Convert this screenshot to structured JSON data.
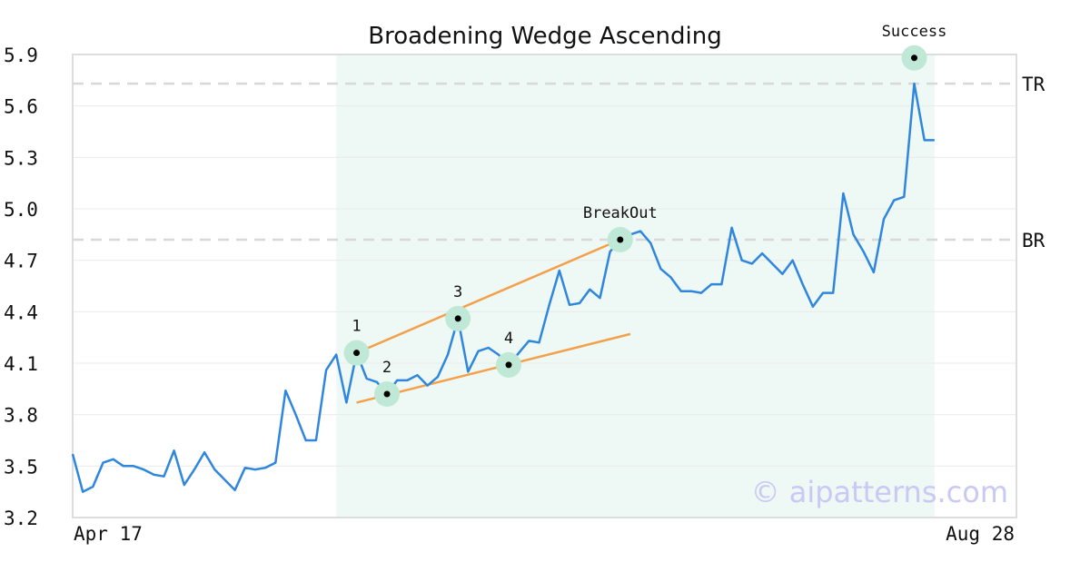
{
  "chart_data": {
    "type": "line",
    "title": "Broadening Wedge Ascending",
    "xlabel": "",
    "ylabel": "",
    "ylim": [
      3.2,
      5.9
    ],
    "yticks": [
      "5.9",
      "5.6",
      "5.3",
      "5.0",
      "4.7",
      "4.4",
      "4.1",
      "3.8",
      "3.5",
      "3.2"
    ],
    "ytick_values": [
      5.9,
      5.6,
      5.3,
      5.0,
      4.7,
      4.4,
      4.1,
      3.8,
      3.5,
      3.2
    ],
    "xtick_labels": [
      "Apr 17",
      "Aug 28"
    ],
    "x_range": [
      0,
      86
    ],
    "grid": "horizontal",
    "colors": {
      "line": "#2e86de",
      "trendline": "#f4a04a",
      "marker_halo": "#bfe9d6",
      "marker_dot": "#000000",
      "highlight": "#eef8f4",
      "level_line": "#d8d8d8",
      "watermark": "#c9c9f5"
    },
    "series": [
      {
        "values": [
          3.57,
          3.35,
          3.38,
          3.52,
          3.54,
          3.5,
          3.5,
          3.48,
          3.45,
          3.44,
          3.59,
          3.39,
          3.48,
          3.58,
          3.48,
          3.42,
          3.36,
          3.49,
          3.48,
          3.49,
          3.52,
          3.94,
          3.8,
          3.65,
          3.65,
          4.06,
          4.15,
          3.87,
          4.16,
          4.01,
          3.99,
          3.92,
          4.0,
          4.0,
          4.03,
          3.97,
          4.02,
          4.15,
          4.36,
          4.05,
          4.17,
          4.19,
          4.15,
          4.09,
          4.16,
          4.23,
          4.22,
          4.44,
          4.64,
          4.44,
          4.45,
          4.53,
          4.48,
          4.75,
          4.82,
          4.85,
          4.87,
          4.8,
          4.65,
          4.6,
          4.52,
          4.52,
          4.51,
          4.56,
          4.56,
          4.89,
          4.7,
          4.68,
          4.74,
          4.68,
          4.62,
          4.7,
          4.56,
          4.43,
          4.51,
          4.51,
          5.09,
          4.85,
          4.75,
          4.63,
          4.94,
          5.05,
          5.07,
          5.73,
          5.4,
          5.4
        ]
      }
    ],
    "highlight_region": {
      "x_start": 26,
      "x_end": 85
    },
    "levels": [
      {
        "label": "TR",
        "y": 5.73
      },
      {
        "label": "BR",
        "y": 4.82
      }
    ],
    "trendlines": [
      {
        "x1": 28,
        "y1": 4.16,
        "x2": 54,
        "y2": 4.82
      },
      {
        "x1": 28,
        "y1": 3.87,
        "x2": 55,
        "y2": 4.27
      }
    ],
    "annotations": [
      {
        "label": "1",
        "x": 28,
        "y": 4.16,
        "pos": "above"
      },
      {
        "label": "2",
        "x": 31,
        "y": 3.92,
        "pos": "above"
      },
      {
        "label": "3",
        "x": 38,
        "y": 4.36,
        "pos": "above"
      },
      {
        "label": "4",
        "x": 43,
        "y": 4.09,
        "pos": "above"
      },
      {
        "label": "BreakOut",
        "x": 54,
        "y": 4.82,
        "pos": "above"
      },
      {
        "label": "Success",
        "x": 83,
        "y": 5.88,
        "pos": "above"
      }
    ],
    "watermark": "© aipatterns.com"
  }
}
